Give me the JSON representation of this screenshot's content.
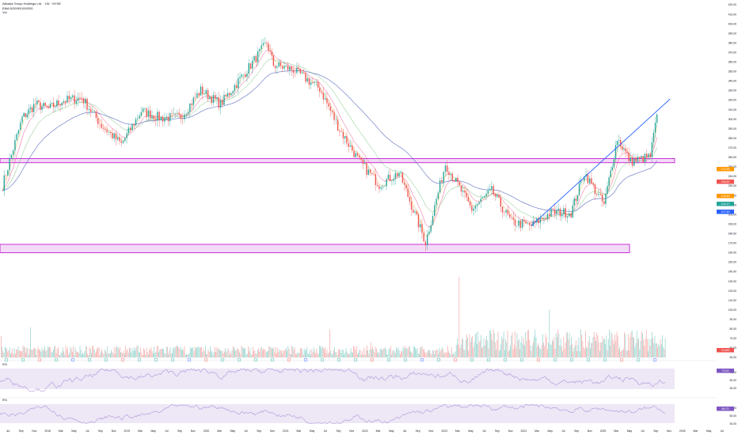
{
  "header": {
    "symbol_line": "Alibaba Group Holdings Ltd. · 1W · NYSE",
    "indicator_line": "EMA 8/20/50/100/200",
    "volume_label": "Vol"
  },
  "panels": {
    "rsi_label": "RSI",
    "stoch_label": "RSI"
  },
  "colors": {
    "background": "#ffffff",
    "up": "#26a69a",
    "down": "#ef5350",
    "trendline": "#2962ff",
    "zone": "#c41fd4",
    "zone_fill": "#f3dbf7",
    "rsi_band": "#ede7f6",
    "ema_fast": "#f5a623",
    "ema_mid": "#e91e63",
    "ema_slow": "#4caf50",
    "ema_long": "#5c6bc0",
    "price_tag": "#ff9800"
  },
  "chart_data": {
    "type": "candlestick",
    "series_trace": [
      [
        "2017-06",
        99
      ],
      [
        "2017-09",
        170
      ],
      [
        "2017-11",
        190
      ],
      [
        "2018-01",
        183
      ],
      [
        "2018-03",
        195
      ],
      [
        "2018-06",
        200
      ],
      [
        "2018-09",
        160
      ],
      [
        "2018-12",
        138
      ],
      [
        "2019-03",
        180
      ],
      [
        "2019-06",
        170
      ],
      [
        "2019-09",
        172
      ],
      [
        "2019-12",
        212
      ],
      [
        "2020-03",
        190
      ],
      [
        "2020-07",
        250
      ],
      [
        "2020-10",
        310
      ],
      [
        "2020-11",
        260
      ],
      [
        "2021-02",
        250
      ],
      [
        "2021-06",
        215
      ],
      [
        "2021-09",
        155
      ],
      [
        "2021-12",
        120
      ],
      [
        "2022-03",
        100
      ],
      [
        "2022-06",
        110
      ],
      [
        "2022-10",
        63
      ],
      [
        "2023-01",
        118
      ],
      [
        "2023-05",
        82
      ],
      [
        "2023-08",
        95
      ],
      [
        "2023-11",
        74
      ],
      [
        "2024-02",
        72
      ],
      [
        "2024-05",
        80
      ],
      [
        "2024-08",
        80
      ],
      [
        "2024-10",
        110
      ],
      [
        "2025-01",
        85
      ],
      [
        "2025-03",
        145
      ],
      [
        "2025-05",
        120
      ],
      [
        "2025-08",
        125
      ],
      [
        "2025-09",
        175
      ]
    ],
    "price_axis_ticks": [
      "420,00",
      "410,00",
      "400,00",
      "390,00",
      "380,00",
      "370,00",
      "360,00",
      "350,00",
      "340,00",
      "330,00",
      "320,00",
      "310,00",
      "300,00",
      "290,00",
      "280,00",
      "270,00",
      "260,00",
      "250,00",
      "240,00",
      "230,00",
      "220,00",
      "210,00",
      "200,00",
      "190,00",
      "180,00",
      "170,00",
      "160,00",
      "150,00",
      "140,00",
      "130,00",
      "120,00",
      "110,00",
      "100,00",
      "90,00",
      "80,00",
      "70,00",
      "60,00",
      "50,00"
    ],
    "time_axis_ticks": [
      "Jul",
      "Sep",
      "Nov",
      "2018",
      "Mar",
      "May",
      "Jul",
      "Sep",
      "Nov",
      "2019",
      "Mar",
      "May",
      "Jul",
      "Sep",
      "Nov",
      "2020",
      "Mar",
      "May",
      "Jul",
      "Sep",
      "Nov",
      "2021",
      "Mar",
      "May",
      "Jul",
      "Sep",
      "Nov",
      "2022",
      "Mar",
      "May",
      "Jul",
      "Sep",
      "Nov",
      "2023",
      "Mar",
      "May",
      "Jul",
      "Sep",
      "Nov",
      "2024",
      "Mar",
      "May",
      "Jul",
      "Sep",
      "Nov",
      "2025",
      "Mar",
      "May",
      "Jul",
      "Sep",
      "Nov",
      "2026",
      "Mar",
      "May",
      "Jul"
    ],
    "zones": [
      {
        "name": "upper support zone",
        "from": 119,
        "to": 123
      },
      {
        "name": "lower support zone",
        "from": 58,
        "to": 62
      }
    ],
    "trendline": {
      "start": [
        "2024-02",
        72
      ],
      "end": [
        "2025-11",
        198
      ]
    },
    "price_tags": [
      "174,55",
      "156,80",
      "134,80",
      "123,17",
      "107,50"
    ],
    "rsi_ticks": [
      "70,00",
      "50,00",
      "30,00"
    ],
    "rsi_tags": [
      "79,53",
      "66,70"
    ],
    "volume_tags": [
      "79,890"
    ],
    "ylim": [
      50,
      420
    ],
    "xlabel": "",
    "ylabel": ""
  }
}
